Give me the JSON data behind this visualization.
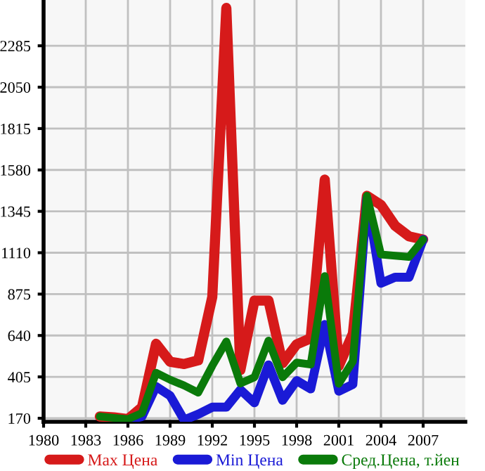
{
  "chart_data": {
    "type": "line",
    "x": [
      1984,
      1985,
      1986,
      1987,
      1988,
      1989,
      1990,
      1991,
      1992,
      1993,
      1994,
      1995,
      1996,
      1997,
      1998,
      1999,
      2000,
      2001,
      2002,
      2003,
      2004,
      2005,
      2006,
      2007
    ],
    "series": [
      {
        "name": "Max Цена",
        "color": "#d61a1a",
        "values": [
          180,
          175,
          165,
          233,
          593,
          491,
          478,
          499,
          859,
          2500,
          444,
          838,
          838,
          483,
          590,
          624,
          1525,
          467,
          650,
          1433,
          1381,
          1264,
          1203,
          1185
        ]
      },
      {
        "name": "Min Цена",
        "color": "#1a1ad6",
        "values": [
          null,
          null,
          160,
          180,
          350,
          298,
          160,
          193,
          233,
          233,
          332,
          258,
          473,
          272,
          384,
          337,
          702,
          324,
          363,
          1420,
          937,
          971,
          971,
          1185
        ]
      },
      {
        "name": "Сред.Цена, т.йен",
        "color": "#0a7a0a",
        "values": [
          180,
          172,
          165,
          200,
          428,
          389,
          356,
          316,
          468,
          606,
          368,
          403,
          611,
          403,
          486,
          475,
          977,
          366,
          493,
          1433,
          1100,
          1093,
          1086,
          1185
        ]
      }
    ],
    "xlim": [
      1980,
      2010
    ],
    "xticks": [
      1980,
      1983,
      1986,
      1989,
      1992,
      1995,
      1998,
      2001,
      2004,
      2007
    ],
    "ylim": [
      150,
      2545
    ],
    "yticks": [
      170,
      405,
      640,
      875,
      1110,
      1345,
      1580,
      1815,
      2050,
      2285
    ],
    "grid": true,
    "legend": "bottom",
    "marker": "none",
    "line_style": "solid"
  }
}
